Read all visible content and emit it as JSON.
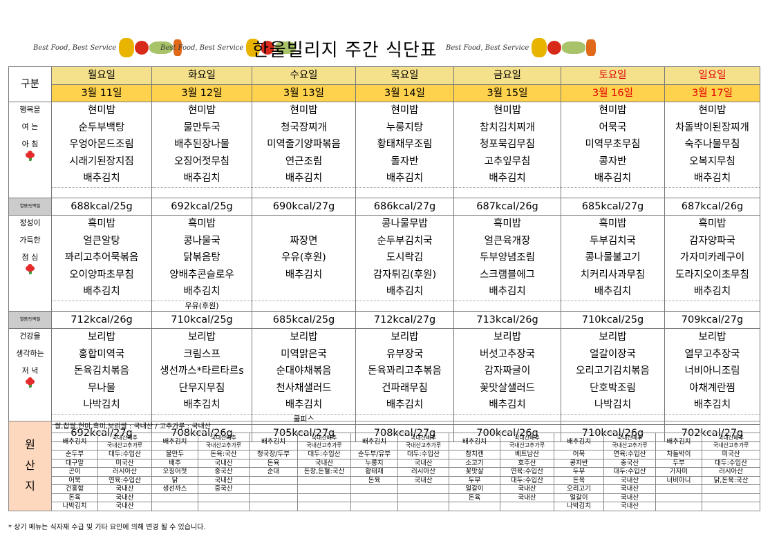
{
  "banner": {
    "text": "Best Food, Best Service"
  },
  "title": "한울빌리지 주간 식단표",
  "header": {
    "gubun": "구분"
  },
  "days": [
    {
      "name": "월요일",
      "date": "3월 11일",
      "weekend": false
    },
    {
      "name": "화요일",
      "date": "3월 12일",
      "weekend": false
    },
    {
      "name": "수요일",
      "date": "3월 13일",
      "weekend": false
    },
    {
      "name": "목요일",
      "date": "3월 14일",
      "weekend": false
    },
    {
      "name": "금요일",
      "date": "3월 15일",
      "weekend": false
    },
    {
      "name": "토요일",
      "date": "3월 16일",
      "weekend": true
    },
    {
      "name": "일요일",
      "date": "3월 17일",
      "weekend": true
    }
  ],
  "kcal_label": "열량/단백질",
  "meals": [
    {
      "label": [
        "행복을",
        "여 는",
        "아 침"
      ],
      "rows": [
        [
          "현미밥",
          "현미밥",
          "현미밥",
          "현미밥",
          "현미밥",
          "현미밥",
          "현미밥"
        ],
        [
          "순두부백탕",
          "물만두국",
          "청국장찌개",
          "누룽지탕",
          "참치김치찌개",
          "어묵국",
          "차돌박이된장찌개"
        ],
        [
          "우엉아몬드조림",
          "배추된장나물",
          "미역줄기양파볶음",
          "황태채무조림",
          "청포묵김무침",
          "미역무초무침",
          "숙주나물무침"
        ],
        [
          "시래기된장지짐",
          "오징어젓무침",
          "연근조림",
          "돌자반",
          "고추잎무침",
          "콩자반",
          "오복지무침"
        ],
        [
          "배추김치",
          "배추김치",
          "배추김치",
          "배추김치",
          "배추김치",
          "배추김치",
          "배추김치"
        ],
        [
          "",
          "",
          "",
          "",
          "",
          "",
          ""
        ]
      ],
      "kcal": [
        "688kcal/25g",
        "692kcal/25g",
        "690kcal/27g",
        "686kcal/27g",
        "687kcal/26g",
        "685kcal/27g",
        "687kcal/26g"
      ]
    },
    {
      "label": [
        "정성이",
        "가득한",
        "점 심"
      ],
      "rows": [
        [
          "흑미밥",
          "흑미밥",
          "",
          "콩나물무밥",
          "흑미밥",
          "흑미밥",
          "흑미밥"
        ],
        [
          "얼큰알탕",
          "콩나물국",
          "짜장면",
          "순두부김치국",
          "얼큰육개장",
          "두부김치국",
          "감자양파국"
        ],
        [
          "꽈리고추어묵볶음",
          "닭볶음탕",
          "우유(후원)",
          "도시락김",
          "두부양념조림",
          "콩나물불고기",
          "가자미카레구이"
        ],
        [
          "오이양파초무침",
          "양배추콘슬로우",
          "배추김치",
          "감자튀김(후원)",
          "스크램블에그",
          "치커리사과무침",
          "도라지오이초무침"
        ],
        [
          "배추김치",
          "배추김치",
          "",
          "배추김치",
          "배추김치",
          "배추김치",
          "배추김치"
        ],
        [
          "",
          "우유(후원)",
          "",
          "",
          "",
          "",
          ""
        ]
      ],
      "kcal": [
        "712kcal/26g",
        "710kcal/25g",
        "685kcal/25g",
        "712kcal/27g",
        "713kcal/26g",
        "710kcal/25g",
        "709kcal/27g"
      ]
    },
    {
      "label": [
        "건강을",
        "생각하는",
        "저 녁"
      ],
      "rows": [
        [
          "보리밥",
          "보리밥",
          "보리밥",
          "보리밥",
          "보리밥",
          "보리밥",
          "보리밥"
        ],
        [
          "홍합미역국",
          "크림스프",
          "미역맑은국",
          "유부장국",
          "버섯고추장국",
          "얼갈이장국",
          "열무고추장국"
        ],
        [
          "돈육김치볶음",
          "생선까스*타르타르s",
          "순대야채볶음",
          "돈육꽈리고추볶음",
          "감자짜글이",
          "오리고기김치볶음",
          "너비아니조림"
        ],
        [
          "무나물",
          "단무지무침",
          "천사채샐러드",
          "건파래무침",
          "꽃맛살샐러드",
          "단호박조림",
          "야채계란찜"
        ],
        [
          "나박김치",
          "배추김치",
          "배추김치",
          "배추김치",
          "배추김치",
          "나박김치",
          "배추김치"
        ],
        [
          "",
          "",
          "쿨피스",
          "",
          "",
          "",
          ""
        ]
      ],
      "kcal": [
        "692kcal/27g",
        "708kcal/26g",
        "705kcal/27g",
        "708kcal/27g",
        "700kcal/26g",
        "710kcal/26g",
        "702kcal/27g"
      ]
    }
  ],
  "origin": {
    "label": [
      "원",
      "산",
      "지"
    ],
    "grain": "쌀,찹쌀,현미,흑미,보리쌀 : 국내산 / 고추가루 : 국내산",
    "rows": [
      [
        "배추김치",
        "국내산배추\n국내산고추가루",
        "배추김치",
        "국내산배추\n국내산고추가루",
        "배추김치",
        "국내산배추\n국내산고추가루",
        "배추김치",
        "국내산배추\n국내산고추가루",
        "배추김치",
        "국내산배추\n국내산고추가루",
        "배추김치",
        "국내산배추\n국내산고추가루",
        "배추김치",
        "국내산배추\n국내산고추가루"
      ],
      [
        "순두부",
        "대두:수입산",
        "물만두",
        "돈육:국산",
        "청국장/두부",
        "대두:수입산",
        "순두부/유부",
        "대두:수입산",
        "참치캔",
        "베트남산",
        "어묵",
        "연육:수입산",
        "차돌박이",
        "미국산"
      ],
      [
        "대구알",
        "미국산",
        "배추",
        "국내산",
        "돈육",
        "국내산",
        "누룽지",
        "국내산",
        "소고기",
        "호주산",
        "콩자반",
        "중국산",
        "두부",
        "대두:수입산"
      ],
      [
        "곤이",
        "러시아산",
        "오징어젓",
        "중국산",
        "순대",
        "돈창,돈혈:국산",
        "황태채",
        "러시아산",
        "꽃맛살",
        "연육:수입산",
        "두부",
        "대두:수입산",
        "가자미",
        "러시아산"
      ],
      [
        "어묵",
        "연육:수입산",
        "닭",
        "국내산",
        "",
        "",
        "돈육",
        "국내산",
        "두부",
        "대두:수입산",
        "돈육",
        "국내산",
        "너비아니",
        "닭,돈육:국산"
      ],
      [
        "건홍합",
        "국내산",
        "생선까스",
        "중국산",
        "",
        "",
        "",
        "",
        "얼갈이",
        "국내산",
        "오리고기",
        "국내산",
        "",
        ""
      ],
      [
        "돈육",
        "국내산",
        "",
        "",
        "",
        "",
        "",
        "",
        "돈육",
        "국내산",
        "얼갈이",
        "국내산",
        "",
        ""
      ],
      [
        "나박김치",
        "국내산",
        "",
        "",
        "",
        "",
        "",
        "",
        "",
        "",
        "나박김치",
        "국내산",
        "",
        ""
      ]
    ]
  },
  "note": "* 상기 메뉴는 식자재 수급 및 기타 요인에 의해 변경 될 수 있습니다."
}
